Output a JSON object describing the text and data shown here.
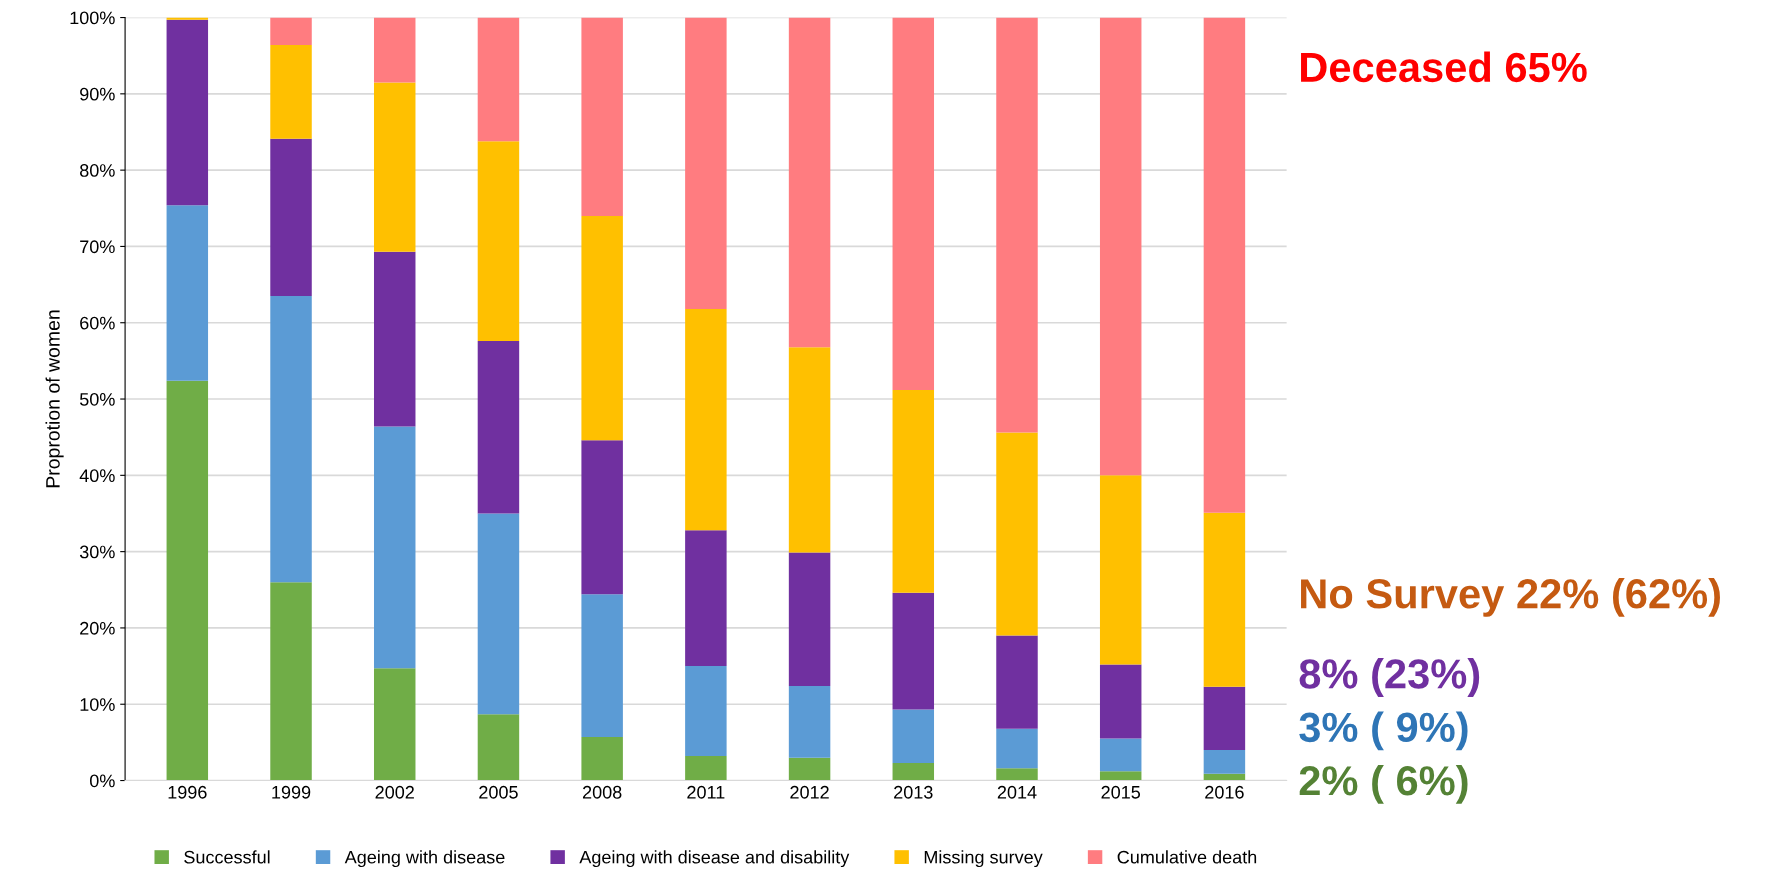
{
  "chart_data": {
    "type": "bar",
    "stacked": true,
    "ylabel": "Proprotion of women",
    "categories": [
      "1996",
      "1999",
      "2002",
      "2005",
      "2008",
      "2011",
      "2012",
      "2013",
      "2014",
      "2015",
      "2016"
    ],
    "series": [
      {
        "name": "Successful",
        "color": "#70ad47",
        "values": [
          52.4,
          26.0,
          14.7,
          8.7,
          5.7,
          3.2,
          3.0,
          2.3,
          1.6,
          1.2,
          0.9
        ]
      },
      {
        "name": "Ageing with disease",
        "color": "#5b9bd5",
        "values": [
          23.0,
          37.5,
          31.7,
          26.3,
          18.7,
          11.8,
          9.4,
          7.0,
          5.2,
          4.3,
          3.1
        ]
      },
      {
        "name": "Ageing with disease and disability",
        "color": "#7030a0",
        "values": [
          24.3,
          20.6,
          22.9,
          22.6,
          20.2,
          17.8,
          17.5,
          15.3,
          12.2,
          9.7,
          8.3
        ]
      },
      {
        "name": "Missing survey",
        "color": "#ffc000",
        "values": [
          0.3,
          12.3,
          22.2,
          26.2,
          29.4,
          29.0,
          26.9,
          26.6,
          26.6,
          24.8,
          22.8
        ]
      },
      {
        "name": "Cumulative death",
        "color": "#ff7c80",
        "values": [
          0.0,
          3.6,
          8.5,
          16.2,
          26.0,
          38.2,
          43.2,
          48.8,
          54.4,
          60.0,
          64.9
        ]
      }
    ],
    "ylim": [
      0,
      100
    ],
    "yticks": [
      {
        "value": 0,
        "label": "0%"
      },
      {
        "value": 10,
        "label": "10%"
      },
      {
        "value": 20,
        "label": "20%"
      },
      {
        "value": 30,
        "label": "30%"
      },
      {
        "value": 40,
        "label": "40%"
      },
      {
        "value": 50,
        "label": "50%"
      },
      {
        "value": 60,
        "label": "60%"
      },
      {
        "value": 70,
        "label": "70%"
      },
      {
        "value": 80,
        "label": "80%"
      },
      {
        "value": 90,
        "label": "90%"
      },
      {
        "value": 100,
        "label": "100%"
      }
    ],
    "grid": "y",
    "legend": "bottom",
    "annotations": [
      "Deceased 65%",
      "No Survey 22% (62%)",
      "8% (23%)",
      "3% ( 9%)",
      "2% ( 6%)"
    ]
  }
}
